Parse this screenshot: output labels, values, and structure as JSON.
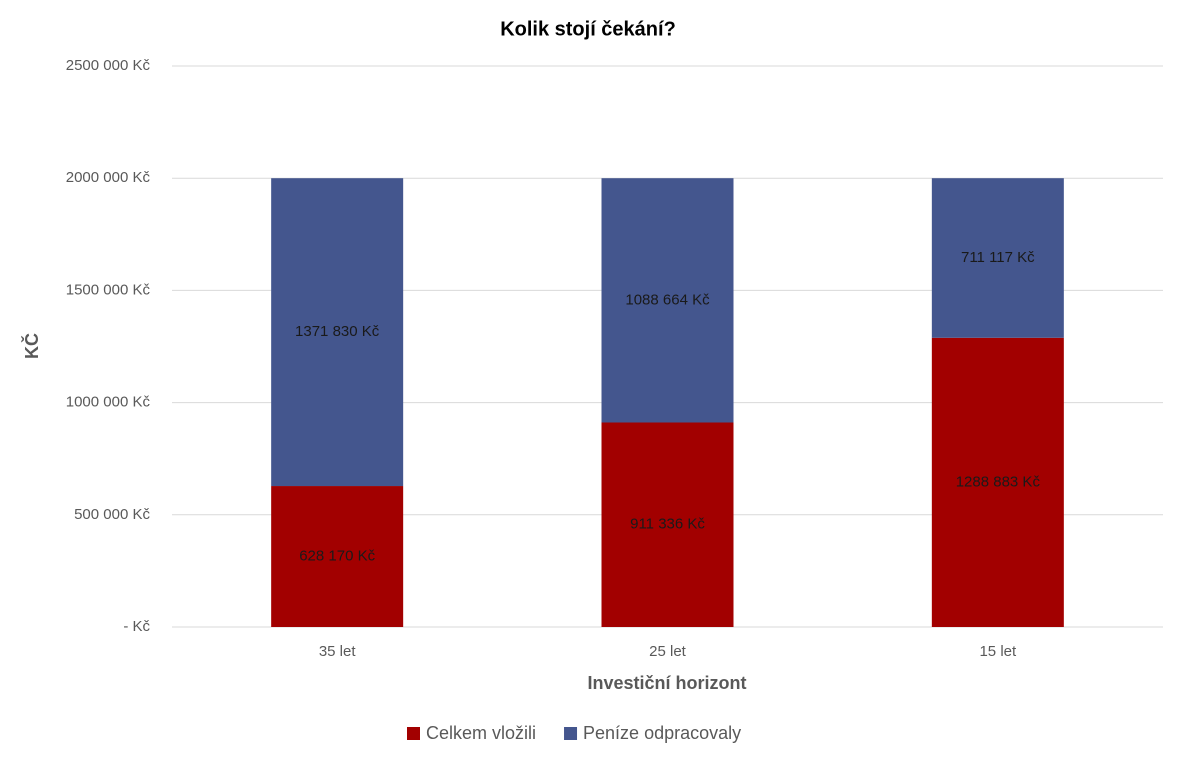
{
  "chart_data": {
    "type": "stacked_bar",
    "title": "Kolik stojí čekání?",
    "x_label": "Investiční horizont",
    "y_label": "KČ",
    "categories": [
      "35 let",
      "25 let",
      "15 let"
    ],
    "series": [
      {
        "name": "Celkem vložili",
        "color": "#a20000",
        "values": [
          628170,
          911336,
          1288883
        ],
        "value_labels": [
          "628 170 Kč",
          "911 336 Kč",
          "1288 883 Kč"
        ]
      },
      {
        "name": "Peníze odpracovaly",
        "color": "#44568e",
        "values": [
          1371830,
          1088664,
          711117
        ],
        "value_labels": [
          "1371 830 Kč",
          "1088 664 Kč",
          "711 117 Kč"
        ]
      }
    ],
    "ylim": [
      0,
      2500000
    ],
    "yticks": [
      {
        "value": 0,
        "label": "-   Kč"
      },
      {
        "value": 500000,
        "label": "500 000 Kč"
      },
      {
        "value": 1000000,
        "label": "1000 000 Kč"
      },
      {
        "value": 1500000,
        "label": "1500 000 Kč"
      },
      {
        "value": 2000000,
        "label": "2000 000 Kč"
      },
      {
        "value": 2500000,
        "label": "2500 000 Kč"
      }
    ],
    "grid": true,
    "legend": "bottom"
  }
}
